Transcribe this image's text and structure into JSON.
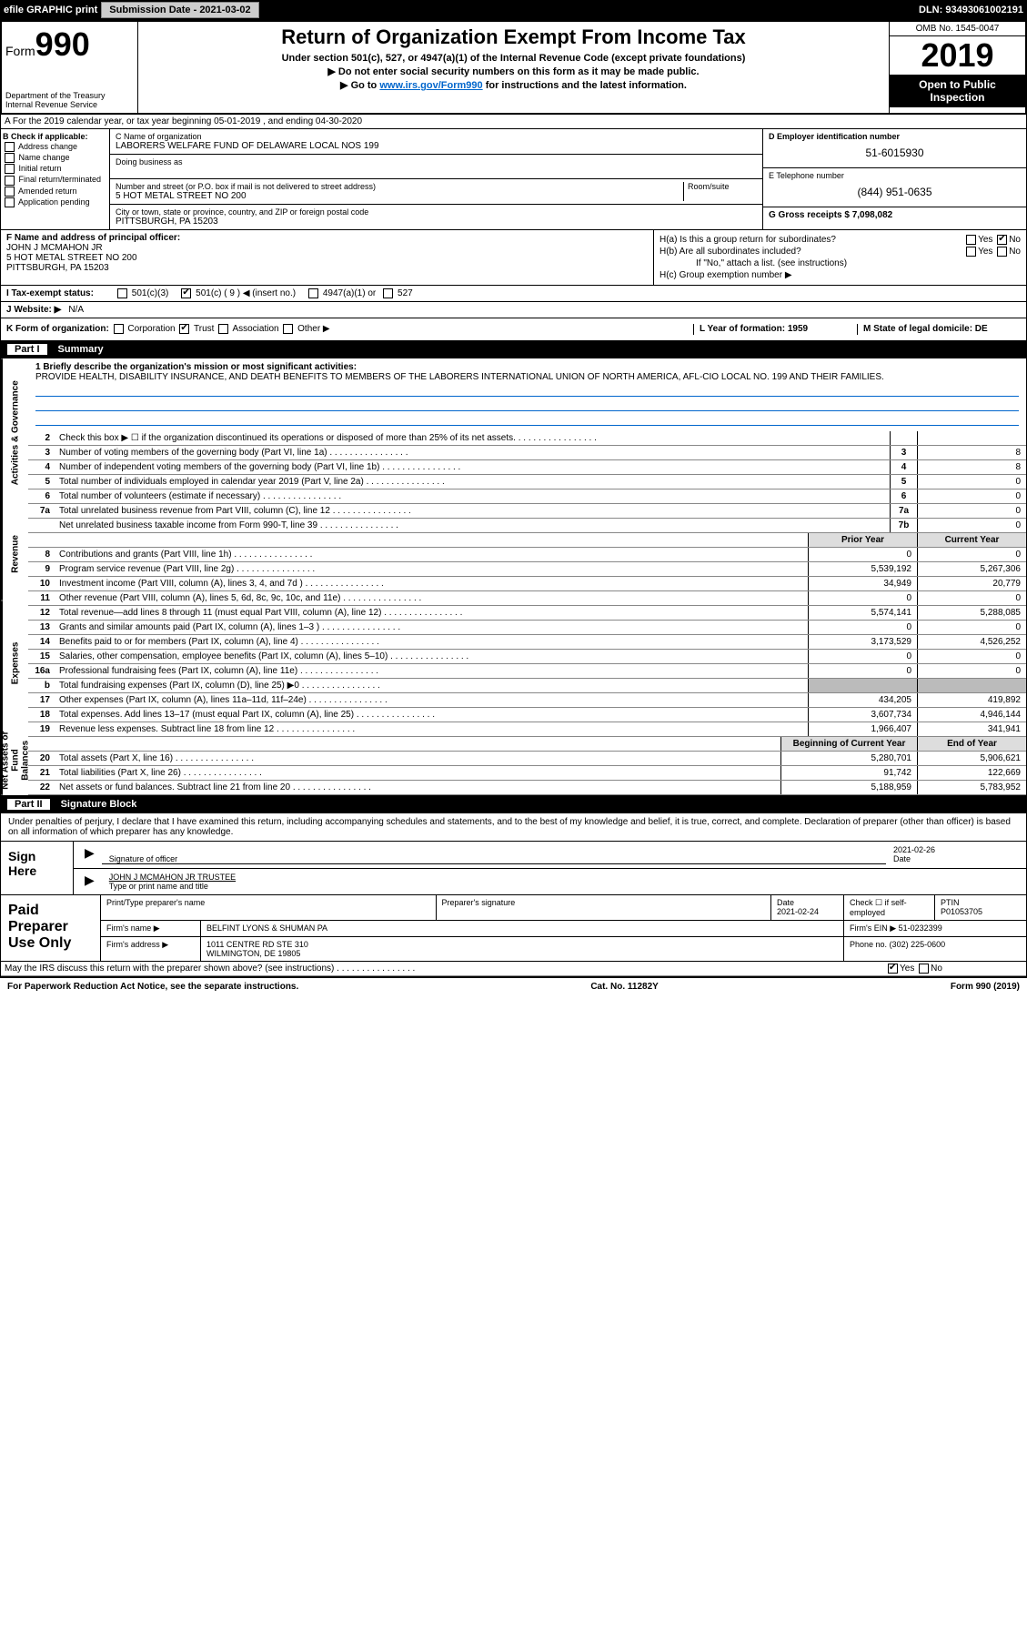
{
  "topbar": {
    "efile": "efile GRAPHIC print",
    "submission": "Submission Date - 2021-03-02",
    "dln": "DLN: 93493061002191"
  },
  "header": {
    "form_label": "Form",
    "form_num": "990",
    "dept": "Department of the Treasury Internal Revenue Service",
    "title": "Return of Organization Exempt From Income Tax",
    "sub1": "Under section 501(c), 527, or 4947(a)(1) of the Internal Revenue Code (except private foundations)",
    "sub2": "▶ Do not enter social security numbers on this form as it may be made public.",
    "sub3_pre": "▶ Go to ",
    "sub3_link": "www.irs.gov/Form990",
    "sub3_post": " for instructions and the latest information.",
    "omb": "OMB No. 1545-0047",
    "year": "2019",
    "open": "Open to Public Inspection"
  },
  "rowA": "A For the 2019 calendar year, or tax year beginning 05-01-2019   , and ending 04-30-2020",
  "B": {
    "label": "B Check if applicable:",
    "items": [
      "Address change",
      "Name change",
      "Initial return",
      "Final return/terminated",
      "Amended return",
      "Application pending"
    ]
  },
  "C": {
    "name_label": "C Name of organization",
    "name": "LABORERS WELFARE FUND OF DELAWARE LOCAL NOS 199",
    "dba_label": "Doing business as",
    "street_label": "Number and street (or P.O. box if mail is not delivered to street address)",
    "room_label": "Room/suite",
    "street": "5 HOT METAL STREET NO 200",
    "city_label": "City or town, state or province, country, and ZIP or foreign postal code",
    "city": "PITTSBURGH, PA  15203"
  },
  "D": {
    "label": "D Employer identification number",
    "ein": "51-6015930"
  },
  "E": {
    "label": "E Telephone number",
    "phone": "(844) 951-0635"
  },
  "G": {
    "label": "G Gross receipts $ 7,098,082"
  },
  "F": {
    "label": "F  Name and address of principal officer:",
    "name": "JOHN J MCMAHON JR",
    "street": "5 HOT METAL STREET NO 200",
    "city": "PITTSBURGH, PA  15203"
  },
  "H": {
    "a": "H(a)  Is this a group return for subordinates?",
    "a_yes": "Yes",
    "a_no": "No",
    "b": "H(b)  Are all subordinates included?",
    "b_yes": "Yes",
    "b_no": "No",
    "b_note": "If \"No,\" attach a list. (see instructions)",
    "c": "H(c)  Group exemption number ▶"
  },
  "I": {
    "label": "I   Tax-exempt status:",
    "opts": [
      "501(c)(3)",
      "501(c) ( 9 ) ◀ (insert no.)",
      "4947(a)(1) or",
      "527"
    ]
  },
  "J": {
    "label": "J   Website: ▶",
    "val": "N/A"
  },
  "K": {
    "label": "K Form of organization:",
    "opts": [
      "Corporation",
      "Trust",
      "Association",
      "Other ▶"
    ]
  },
  "L": {
    "label": "L Year of formation: 1959"
  },
  "M": {
    "label": "M State of legal domicile: DE"
  },
  "part1": {
    "num": "Part I",
    "title": "Summary"
  },
  "mission": {
    "label": "1  Briefly describe the organization's mission or most significant activities:",
    "text": "PROVIDE HEALTH, DISABILITY INSURANCE, AND DEATH BENEFITS TO MEMBERS OF THE LABORERS INTERNATIONAL UNION OF NORTH AMERICA, AFL-CIO LOCAL NO. 199 AND THEIR FAMILIES."
  },
  "side_labels": {
    "gov": "Activities & Governance",
    "rev": "Revenue",
    "exp": "Expenses",
    "net": "Net Assets or Fund Balances"
  },
  "lines_gov": [
    {
      "n": "2",
      "d": "Check this box ▶ ☐  if the organization discontinued its operations or disposed of more than 25% of its net assets.",
      "box": "",
      "v": ""
    },
    {
      "n": "3",
      "d": "Number of voting members of the governing body (Part VI, line 1a)",
      "box": "3",
      "v": "8"
    },
    {
      "n": "4",
      "d": "Number of independent voting members of the governing body (Part VI, line 1b)",
      "box": "4",
      "v": "8"
    },
    {
      "n": "5",
      "d": "Total number of individuals employed in calendar year 2019 (Part V, line 2a)",
      "box": "5",
      "v": "0"
    },
    {
      "n": "6",
      "d": "Total number of volunteers (estimate if necessary)",
      "box": "6",
      "v": "0"
    },
    {
      "n": "7a",
      "d": "Total unrelated business revenue from Part VIII, column (C), line 12",
      "box": "7a",
      "v": "0"
    },
    {
      "n": "",
      "d": "Net unrelated business taxable income from Form 990-T, line 39",
      "box": "7b",
      "v": "0"
    }
  ],
  "col_hdrs": {
    "prior": "Prior Year",
    "current": "Current Year",
    "begin": "Beginning of Current Year",
    "end": "End of Year"
  },
  "lines_rev": [
    {
      "n": "8",
      "d": "Contributions and grants (Part VIII, line 1h)",
      "p": "0",
      "c": "0"
    },
    {
      "n": "9",
      "d": "Program service revenue (Part VIII, line 2g)",
      "p": "5,539,192",
      "c": "5,267,306"
    },
    {
      "n": "10",
      "d": "Investment income (Part VIII, column (A), lines 3, 4, and 7d )",
      "p": "34,949",
      "c": "20,779"
    },
    {
      "n": "11",
      "d": "Other revenue (Part VIII, column (A), lines 5, 6d, 8c, 9c, 10c, and 11e)",
      "p": "0",
      "c": "0"
    },
    {
      "n": "12",
      "d": "Total revenue—add lines 8 through 11 (must equal Part VIII, column (A), line 12)",
      "p": "5,574,141",
      "c": "5,288,085"
    }
  ],
  "lines_exp": [
    {
      "n": "13",
      "d": "Grants and similar amounts paid (Part IX, column (A), lines 1–3 )",
      "p": "0",
      "c": "0"
    },
    {
      "n": "14",
      "d": "Benefits paid to or for members (Part IX, column (A), line 4)",
      "p": "3,173,529",
      "c": "4,526,252"
    },
    {
      "n": "15",
      "d": "Salaries, other compensation, employee benefits (Part IX, column (A), lines 5–10)",
      "p": "0",
      "c": "0"
    },
    {
      "n": "16a",
      "d": "Professional fundraising fees (Part IX, column (A), line 11e)",
      "p": "0",
      "c": "0"
    },
    {
      "n": "b",
      "d": "Total fundraising expenses (Part IX, column (D), line 25) ▶0",
      "p": "",
      "c": "",
      "gray": true
    },
    {
      "n": "17",
      "d": "Other expenses (Part IX, column (A), lines 11a–11d, 11f–24e)",
      "p": "434,205",
      "c": "419,892"
    },
    {
      "n": "18",
      "d": "Total expenses. Add lines 13–17 (must equal Part IX, column (A), line 25)",
      "p": "3,607,734",
      "c": "4,946,144"
    },
    {
      "n": "19",
      "d": "Revenue less expenses. Subtract line 18 from line 12",
      "p": "1,966,407",
      "c": "341,941"
    }
  ],
  "lines_net": [
    {
      "n": "20",
      "d": "Total assets (Part X, line 16)",
      "p": "5,280,701",
      "c": "5,906,621"
    },
    {
      "n": "21",
      "d": "Total liabilities (Part X, line 26)",
      "p": "91,742",
      "c": "122,669"
    },
    {
      "n": "22",
      "d": "Net assets or fund balances. Subtract line 21 from line 20",
      "p": "5,188,959",
      "c": "5,783,952"
    }
  ],
  "part2": {
    "num": "Part II",
    "title": "Signature Block"
  },
  "sig": {
    "decl": "Under penalties of perjury, I declare that I have examined this return, including accompanying schedules and statements, and to the best of my knowledge and belief, it is true, correct, and complete. Declaration of preparer (other than officer) is based on all information of which preparer has any knowledge.",
    "here": "Sign Here",
    "sig_label": "Signature of officer",
    "date_label": "Date",
    "date": "2021-02-26",
    "name": "JOHN J MCMAHON JR TRUSTEE",
    "name_label": "Type or print name and title"
  },
  "prep": {
    "label": "Paid Preparer Use Only",
    "h1": "Print/Type preparer's name",
    "h2": "Preparer's signature",
    "h3": "Date",
    "h4": "Check ☐ if self-employed",
    "h5": "PTIN",
    "date": "2021-02-24",
    "ptin": "P01053705",
    "firm_label": "Firm's name    ▶",
    "firm": "BELFINT LYONS & SHUMAN PA",
    "ein_label": "Firm's EIN ▶",
    "ein": "51-0232399",
    "addr_label": "Firm's address ▶",
    "addr1": "1011 CENTRE RD STE 310",
    "addr2": "WILMINGTON, DE  19805",
    "phone_label": "Phone no.",
    "phone": "(302) 225-0600"
  },
  "discuss": "May the IRS discuss this return with the preparer shown above? (see instructions)",
  "discuss_yes": "Yes",
  "discuss_no": "No",
  "footer": {
    "left": "For Paperwork Reduction Act Notice, see the separate instructions.",
    "mid": "Cat. No. 11282Y",
    "right": "Form 990 (2019)"
  }
}
